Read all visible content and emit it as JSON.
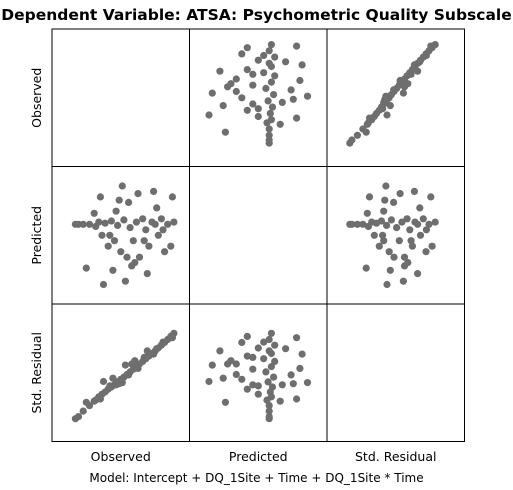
{
  "title": "Dependent Variable: ATSA: Psychometric Quality Subscale",
  "footnote": "Model: Intercept + DQ_1Site + Time + DQ_1Site * Time",
  "chart_data": {
    "type": "scatter",
    "layout": "scatterplot-matrix",
    "variables": [
      "Observed",
      "Predicted",
      "Std. Residual"
    ],
    "marker_color": "#6e6e6e",
    "grid": false,
    "legend": "none",
    "axis_ranges": {
      "Observed": [
        1.5,
        5.0
      ],
      "Predicted": [
        3.0,
        4.0
      ],
      "Std. Residual": [
        -2.8,
        2.2
      ]
    },
    "points": [
      {
        "observed": 1.8,
        "predicted": 3.6,
        "std_residual": -2.4
      },
      {
        "observed": 1.9,
        "predicted": 3.6,
        "std_residual": -2.3
      },
      {
        "observed": 2.05,
        "predicted": 3.6,
        "std_residual": -2.05
      },
      {
        "observed": 2.25,
        "predicted": 3.6,
        "std_residual": -1.8
      },
      {
        "observed": 2.45,
        "predicted": 3.58,
        "std_residual": -1.55
      },
      {
        "observed": 2.55,
        "predicted": 3.62,
        "std_residual": -1.4
      },
      {
        "observed": 2.65,
        "predicted": 3.5,
        "std_residual": -1.28
      },
      {
        "observed": 2.75,
        "predicted": 3.61,
        "std_residual": -1.18
      },
      {
        "observed": 2.85,
        "predicted": 3.4,
        "std_residual": -1.05
      },
      {
        "observed": 2.95,
        "predicted": 3.63,
        "std_residual": -0.95
      },
      {
        "observed": 3.05,
        "predicted": 3.45,
        "std_residual": -0.85
      },
      {
        "observed": 3.15,
        "predicted": 3.59,
        "std_residual": -0.72
      },
      {
        "observed": 3.25,
        "predicted": 3.35,
        "std_residual": -0.6
      },
      {
        "observed": 3.35,
        "predicted": 3.64,
        "std_residual": -0.5
      },
      {
        "observed": 3.45,
        "predicted": 3.3,
        "std_residual": -0.38
      },
      {
        "observed": 3.55,
        "predicted": 3.57,
        "std_residual": -0.26
      },
      {
        "observed": 3.65,
        "predicted": 3.45,
        "std_residual": -0.14
      },
      {
        "observed": 3.75,
        "predicted": 3.62,
        "std_residual": -0.02
      },
      {
        "observed": 3.85,
        "predicted": 3.3,
        "std_residual": 0.1
      },
      {
        "observed": 3.95,
        "predicted": 3.65,
        "std_residual": 0.22
      },
      {
        "observed": 4.05,
        "predicted": 3.55,
        "std_residual": 0.34
      },
      {
        "observed": 4.15,
        "predicted": 3.4,
        "std_residual": 0.46
      },
      {
        "observed": 4.25,
        "predicted": 3.62,
        "std_residual": 0.58
      },
      {
        "observed": 4.35,
        "predicted": 3.6,
        "std_residual": 0.7
      },
      {
        "observed": 4.45,
        "predicted": 3.5,
        "std_residual": 0.83
      },
      {
        "observed": 4.55,
        "predicted": 3.65,
        "std_residual": 0.96
      },
      {
        "observed": 4.65,
        "predicted": 3.35,
        "std_residual": 1.08
      },
      {
        "observed": 4.75,
        "predicted": 3.6,
        "std_residual": 1.22
      },
      {
        "observed": 4.85,
        "predicted": 3.4,
        "std_residual": 1.36
      },
      {
        "observed": 4.95,
        "predicted": 3.62,
        "std_residual": 1.5
      },
      {
        "observed": 2.15,
        "predicted": 3.2,
        "std_residual": -1.65
      },
      {
        "observed": 3.0,
        "predicted": 3.18,
        "std_residual": -0.55
      },
      {
        "observed": 3.6,
        "predicted": 3.22,
        "std_residual": 0.1
      },
      {
        "observed": 4.1,
        "predicted": 3.15,
        "std_residual": 0.7
      },
      {
        "observed": 2.6,
        "predicted": 3.85,
        "std_residual": -1.5
      },
      {
        "observed": 3.2,
        "predicted": 3.82,
        "std_residual": -0.8
      },
      {
        "observed": 3.8,
        "predicted": 3.88,
        "std_residual": -0.1
      },
      {
        "observed": 4.3,
        "predicted": 3.9,
        "std_residual": 0.55
      },
      {
        "observed": 4.9,
        "predicted": 3.85,
        "std_residual": 1.3
      },
      {
        "observed": 3.5,
        "predicted": 3.8,
        "std_residual": -0.4
      },
      {
        "observed": 2.7,
        "predicted": 3.05,
        "std_residual": -0.7
      },
      {
        "observed": 3.4,
        "predicted": 3.08,
        "std_residual": 0.05
      },
      {
        "observed": 2.4,
        "predicted": 3.7,
        "std_residual": -1.6
      },
      {
        "observed": 3.1,
        "predicted": 3.72,
        "std_residual": -0.85
      },
      {
        "observed": 4.4,
        "predicted": 3.75,
        "std_residual": 0.8
      },
      {
        "observed": 3.7,
        "predicted": 3.25,
        "std_residual": 0.25
      },
      {
        "observed": 2.9,
        "predicted": 3.5,
        "std_residual": -0.9
      },
      {
        "observed": 4.6,
        "predicted": 3.55,
        "std_residual": 1.1
      },
      {
        "observed": 3.3,
        "predicted": 3.95,
        "std_residual": -0.75
      },
      {
        "observed": 4.0,
        "predicted": 3.45,
        "std_residual": 0.4
      }
    ]
  }
}
